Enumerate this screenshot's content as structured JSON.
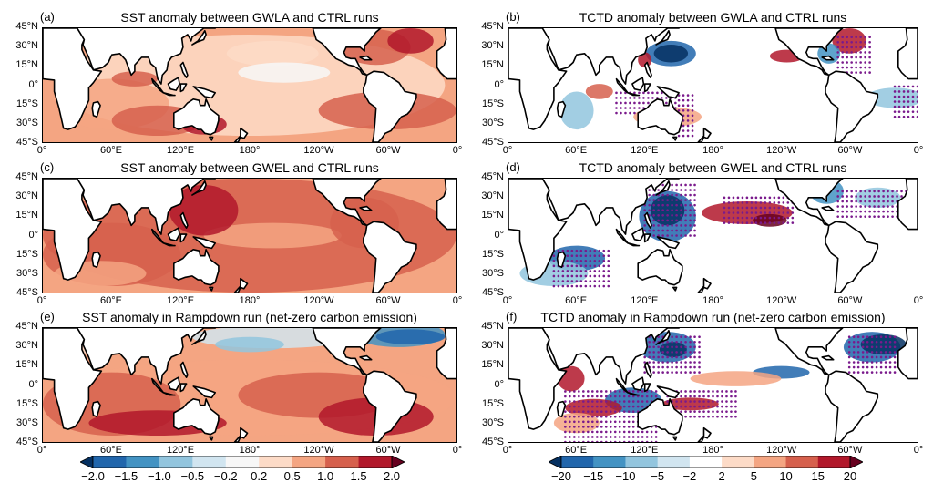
{
  "colors": {
    "land": "#ffffff",
    "coast": "#000000",
    "stipple": "#7a1a8c",
    "sst_scale": [
      "#053061",
      "#2166ac",
      "#4393c3",
      "#92c5de",
      "#d1e5f0",
      "#f7f7f7",
      "#fddbc7",
      "#f4a582",
      "#d6604d",
      "#b2182b",
      "#67001f"
    ],
    "tctd_scale": [
      "#053061",
      "#2166ac",
      "#4393c3",
      "#92c5de",
      "#d1e5f0",
      "#ffffff",
      "#fddbc7",
      "#f4a582",
      "#d6604d",
      "#b2182b",
      "#67001f"
    ]
  },
  "panels": [
    {
      "letter": "(a)",
      "title": "SST anomaly between GWLA and CTRL runs",
      "field": "sst"
    },
    {
      "letter": "(b)",
      "title": "TCTD anomaly between GWLA and CTRL runs",
      "field": "tctd"
    },
    {
      "letter": "(c)",
      "title": "SST anomaly between GWEL and CTRL runs",
      "field": "sst"
    },
    {
      "letter": "(d)",
      "title": "TCTD anomaly between GWEL and CTRL runs",
      "field": "tctd"
    },
    {
      "letter": "(e)",
      "title": "SST anomaly in Rampdown run (net-zero carbon emission)",
      "field": "sst"
    },
    {
      "letter": "(f)",
      "title": "TCTD anomaly in Rampdown run (net-zero carbon emission)",
      "field": "tctd"
    }
  ],
  "lat_labels": [
    "45°N",
    "30°N",
    "15°N",
    "0°",
    "15°S",
    "30°S",
    "45°S"
  ],
  "lon_labels": [
    "0°",
    "60°E",
    "120°E",
    "180°",
    "120°W",
    "60°W",
    "0°"
  ],
  "sst_colorbar": {
    "ticks": [
      "−2.0",
      "−1.5",
      "−1.0",
      "−0.5",
      "−0.2",
      "0.2",
      "0.5",
      "1.0",
      "1.5",
      "2.0"
    ]
  },
  "tctd_colorbar": {
    "ticks": [
      "−20",
      "−15",
      "−10",
      "−5",
      "−2",
      "2",
      "5",
      "10",
      "15",
      "20"
    ]
  }
}
